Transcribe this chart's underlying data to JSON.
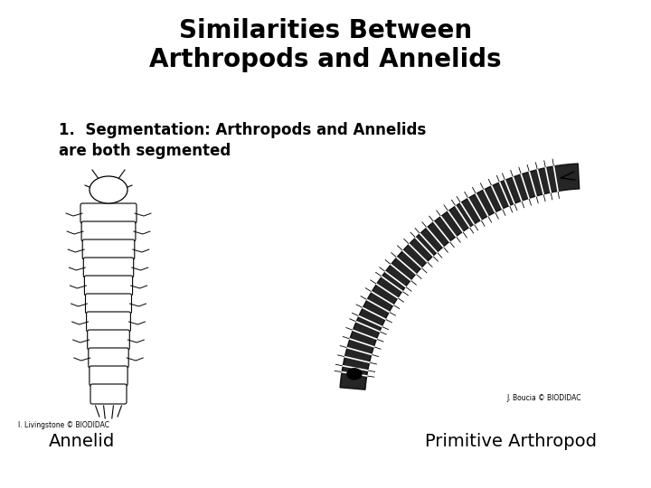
{
  "title_line1": "Similarities Between",
  "title_line2": "Arthropods and Annelids",
  "point_line1": "1.  Segmentation: Arthropods and Annelids",
  "point_line2": "are both segmented",
  "label_left_small": "I. Livingstone © BIODIDAC",
  "label_right_small": "J. Boucia © BIODIDAC",
  "label_left": "Annelid",
  "label_right": "Primitive Arthropod",
  "bg_color": "#ffffff",
  "title_fontsize": 20,
  "point_fontsize": 12,
  "label_fontsize": 14,
  "small_fontsize": 5.5
}
